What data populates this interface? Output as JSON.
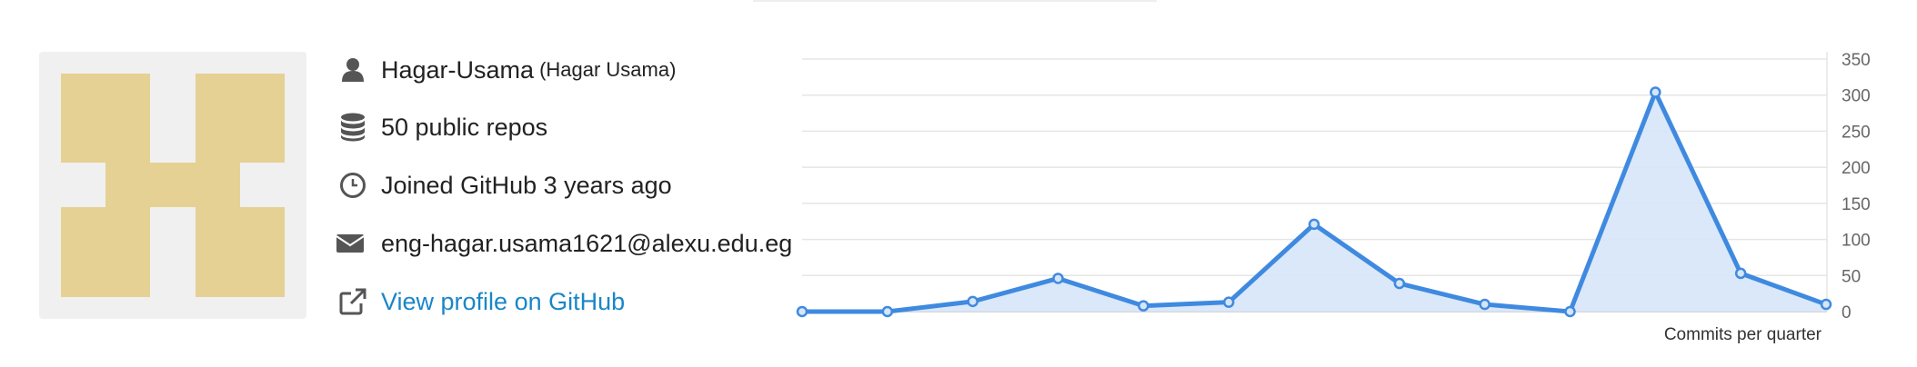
{
  "profile": {
    "username": "Hagar-Usama",
    "display_name": "(Hagar Usama)",
    "repos": "50 public repos",
    "joined": "Joined GitHub 3 years ago",
    "email": "eng-hagar.usama1621@alexu.edu.eg",
    "profile_link": "View profile on GitHub"
  },
  "icons": {
    "user": "user-icon",
    "repos": "database-icon",
    "joined": "clock-icon",
    "email": "envelope-icon",
    "link": "external-link-icon"
  },
  "colors": {
    "avatar_fill": "#e5d193",
    "avatar_bg": "#f0f0f0",
    "link": "#1a86c7",
    "line": "#3f8ae0",
    "area": "#d6e6f8"
  },
  "chart_data": {
    "type": "area",
    "xlabel": "Commits per quarter",
    "ylim": [
      0,
      350
    ],
    "y_ticks": [
      0,
      50,
      100,
      150,
      200,
      250,
      300,
      350
    ],
    "y_axis_side": "right",
    "grid": true,
    "series": [
      {
        "values": [
          0,
          0,
          14,
          46,
          8,
          13,
          121,
          39,
          10,
          0,
          304,
          53,
          10
        ]
      }
    ]
  }
}
